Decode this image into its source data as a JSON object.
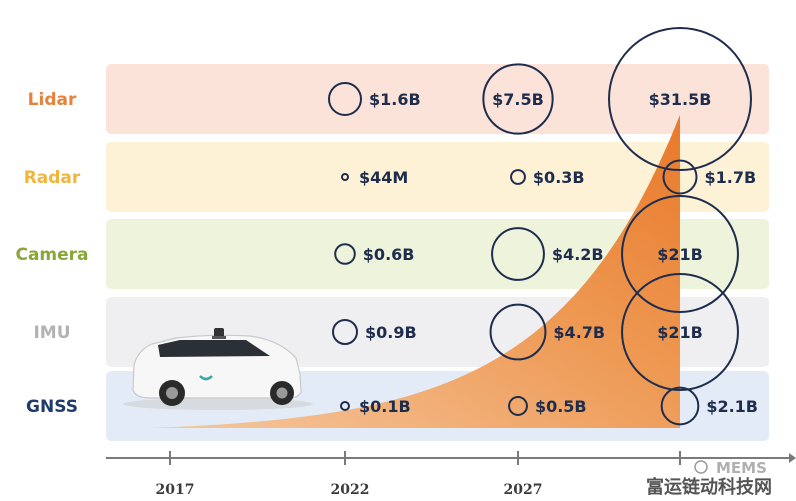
{
  "chart_data": {
    "type": "bubble",
    "title": "",
    "x_ticks": [
      "2017",
      "2022",
      "2027"
    ],
    "rows": [
      {
        "label": "Lidar",
        "label_color": "#e8813a",
        "band_color": "#fbe3d9",
        "values": [
          {
            "x": "2022",
            "text": "$1.6B",
            "amount_musd": 1600
          },
          {
            "x": "2027",
            "text": "$7.5B",
            "amount_musd": 7500
          },
          {
            "x": "2032",
            "text": "$31.5B",
            "amount_musd": 31500
          }
        ]
      },
      {
        "label": "Radar",
        "label_color": "#f1b43c",
        "band_color": "#fdf1d6",
        "values": [
          {
            "x": "2022",
            "text": "$44M",
            "amount_musd": 44
          },
          {
            "x": "2027",
            "text": "$0.3B",
            "amount_musd": 300
          },
          {
            "x": "2032",
            "text": "$1.7B",
            "amount_musd": 1700
          }
        ]
      },
      {
        "label": "Camera",
        "label_color": "#8aa63a",
        "band_color": "#eef3dc",
        "values": [
          {
            "x": "2022",
            "text": "$0.6B",
            "amount_musd": 600
          },
          {
            "x": "2027",
            "text": "$4.2B",
            "amount_musd": 4200
          },
          {
            "x": "2032",
            "text": "$21B",
            "amount_musd": 21000
          }
        ]
      },
      {
        "label": "IMU",
        "label_color": "#b3b3b3",
        "band_color": "#efeff1",
        "values": [
          {
            "x": "2022",
            "text": "$0.9B",
            "amount_musd": 900
          },
          {
            "x": "2027",
            "text": "$4.7B",
            "amount_musd": 4700
          },
          {
            "x": "2032",
            "text": "$21B",
            "amount_musd": 21000
          }
        ]
      },
      {
        "label": "GNSS",
        "label_color": "#1f3a6b",
        "band_color": "#e3ecf6",
        "values": [
          {
            "x": "2022",
            "text": "$0.1B",
            "amount_musd": 100
          },
          {
            "x": "2027",
            "text": "$0.5B",
            "amount_musd": 500
          },
          {
            "x": "2032",
            "text": "$2.1B",
            "amount_musd": 2100
          }
        ]
      }
    ],
    "growth_area_color": "#ee8a3c",
    "bubble_color": "#1f2d4d"
  },
  "watermark": {
    "logo_text": "MEMS",
    "site_text": "富运链动科技网"
  }
}
